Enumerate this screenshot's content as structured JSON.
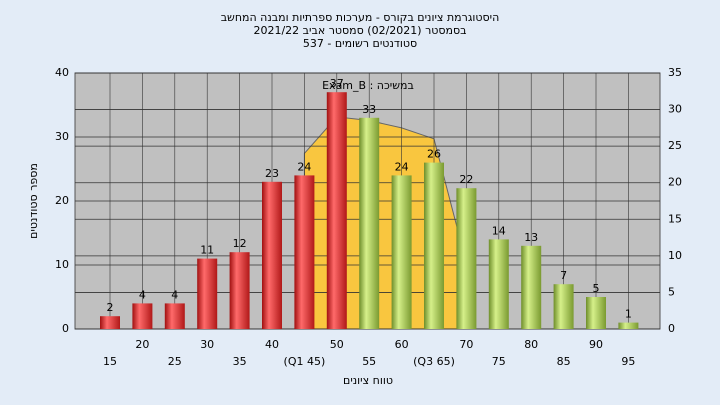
{
  "chart_data": {
    "type": "bar",
    "title": [
      "היסטוגרמת ציונים בקורס - מערכות ספרתיות ומבנה המחשב",
      "בסמסטר  (02/2021)  סמסטר אביב 2021/22",
      "סטודנטים רשומים - 537"
    ],
    "y_label": "מספר סטודנטים",
    "x_label": "טווח ציונים",
    "annotation": "Exam_B : במשיכה",
    "categories": [
      "15",
      "20",
      "25",
      "30",
      "35",
      "40",
      "(Q1 45)",
      "50",
      "55",
      "60",
      "(Q3 65)",
      "70",
      "75",
      "80",
      "85",
      "90",
      "95"
    ],
    "values": [
      2,
      4,
      4,
      11,
      12,
      23,
      24,
      37,
      33,
      24,
      26,
      22,
      14,
      13,
      7,
      5,
      1
    ],
    "colors": [
      "red",
      "red",
      "red",
      "red",
      "red",
      "red",
      "red",
      "red",
      "green",
      "green",
      "green",
      "green",
      "green",
      "green",
      "green",
      "green",
      "green"
    ],
    "overlay": {
      "axis": "y2",
      "color": "#f9c63f",
      "values": [
        null,
        null,
        null,
        null,
        null,
        null,
        24,
        29,
        28.5,
        27.5,
        26,
        9,
        null,
        null,
        null,
        null,
        null
      ]
    },
    "ylim": [
      0,
      40
    ],
    "yticks": [
      0,
      10,
      20,
      30,
      40
    ],
    "y2lim": [
      0,
      35
    ],
    "y2ticks": [
      0,
      5,
      10,
      15,
      20,
      25,
      30,
      35
    ],
    "grid": true
  }
}
